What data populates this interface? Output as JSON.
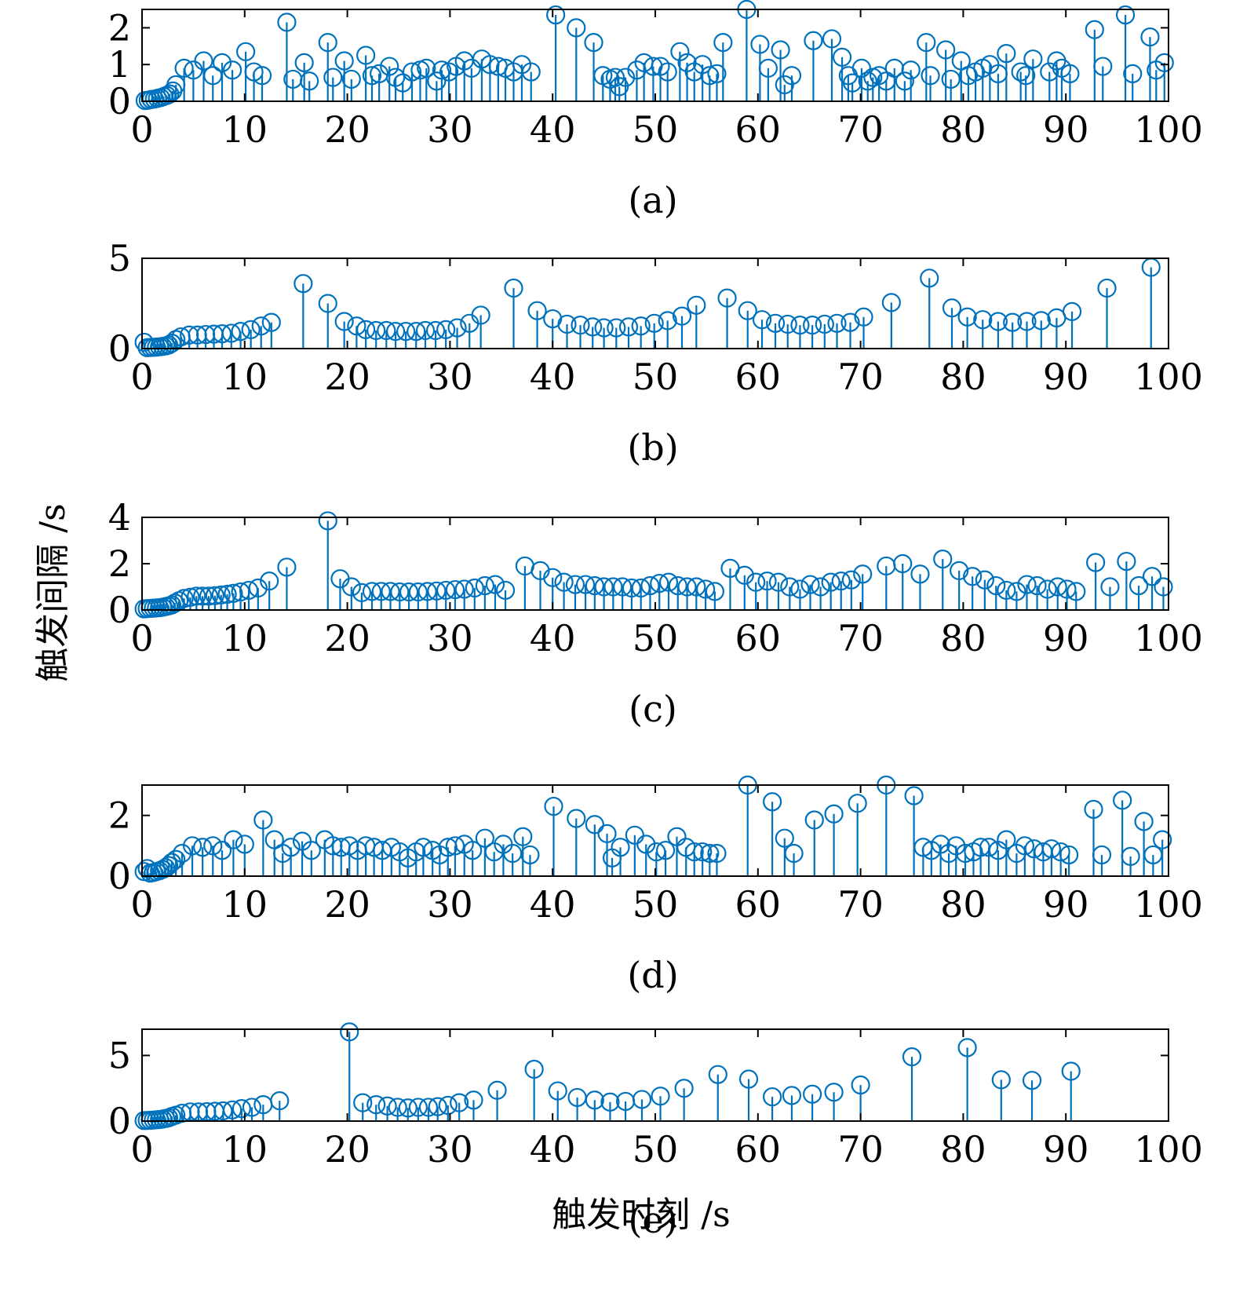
{
  "figure": {
    "ylabel": "触发间隔 /s",
    "xlabel": "触发时刻 /s",
    "stem_color": "#0072BD"
  },
  "chart_data": [
    {
      "type": "stem",
      "caption": "(a)",
      "xlim": [
        0,
        100
      ],
      "ylim": [
        0,
        2.5
      ],
      "xticks": [
        0,
        10,
        20,
        30,
        40,
        50,
        60,
        70,
        80,
        90,
        100
      ],
      "yticks": [
        0,
        1,
        2
      ],
      "x": [
        0.3,
        0.6,
        0.9,
        1.2,
        1.5,
        1.8,
        2.1,
        2.4,
        2.7,
        3.0,
        3.3,
        4.1,
        5.0,
        6.0,
        6.9,
        7.8,
        8.8,
        10.1,
        10.9,
        11.7,
        14.1,
        14.7,
        15.8,
        16.3,
        18.1,
        18.6,
        19.7,
        20.4,
        21.8,
        22.4,
        23.1,
        24.1,
        24.7,
        25.4,
        26.3,
        27.1,
        27.7,
        28.7,
        29.2,
        29.9,
        30.6,
        31.4,
        32.1,
        33.1,
        33.9,
        34.7,
        35.4,
        36.2,
        37.0,
        37.9,
        40.3,
        42.3,
        44.0,
        44.9,
        45.6,
        46.1,
        46.5,
        47.1,
        48.2,
        48.9,
        49.8,
        50.5,
        51.2,
        52.4,
        53.1,
        53.8,
        54.6,
        55.3,
        56.0,
        56.6,
        58.9,
        60.2,
        61.0,
        62.2,
        62.6,
        63.3,
        65.4,
        67.2,
        68.2,
        68.8,
        69.2,
        70.1,
        70.7,
        71.2,
        71.8,
        72.5,
        73.3,
        74.3,
        74.9,
        76.4,
        76.8,
        78.3,
        78.8,
        79.8,
        80.5,
        81.2,
        81.9,
        82.6,
        83.4,
        84.2,
        85.6,
        86.1,
        86.8,
        88.4,
        89.1,
        89.6,
        90.4,
        92.8,
        93.6,
        95.8,
        96.5,
        98.2,
        98.8,
        99.6
      ],
      "y": [
        0.02,
        0.03,
        0.05,
        0.06,
        0.08,
        0.1,
        0.13,
        0.16,
        0.2,
        0.28,
        0.45,
        0.9,
        0.85,
        1.1,
        0.7,
        1.05,
        0.85,
        1.35,
        0.8,
        0.7,
        2.15,
        0.6,
        1.05,
        0.55,
        1.6,
        0.65,
        1.1,
        0.6,
        1.25,
        0.7,
        0.75,
        0.95,
        0.65,
        0.5,
        0.8,
        0.85,
        0.9,
        0.55,
        0.85,
        0.8,
        0.95,
        1.1,
        0.9,
        1.15,
        1.0,
        0.95,
        0.9,
        0.8,
        1.0,
        0.8,
        2.35,
        2.0,
        1.6,
        0.7,
        0.6,
        0.65,
        0.4,
        0.65,
        0.85,
        1.05,
        0.95,
        0.95,
        0.8,
        1.35,
        1.05,
        0.8,
        1.0,
        0.7,
        0.75,
        1.6,
        2.5,
        1.55,
        0.9,
        1.4,
        0.45,
        0.7,
        1.65,
        1.7,
        1.2,
        0.7,
        0.5,
        0.9,
        0.55,
        0.65,
        0.7,
        0.55,
        0.9,
        0.55,
        0.85,
        1.6,
        0.7,
        1.4,
        0.6,
        1.1,
        0.7,
        0.8,
        0.9,
        1.0,
        0.75,
        1.3,
        0.8,
        0.7,
        1.15,
        0.8,
        1.1,
        0.9,
        0.75,
        1.95,
        0.95,
        2.35,
        0.75,
        1.75,
        0.85,
        1.05
      ]
    },
    {
      "type": "stem",
      "caption": "(b)",
      "xlim": [
        0,
        100
      ],
      "ylim": [
        0,
        5
      ],
      "xticks": [
        0,
        10,
        20,
        30,
        40,
        50,
        60,
        70,
        80,
        90,
        100
      ],
      "yticks": [
        0,
        5
      ],
      "x": [
        0.2,
        0.5,
        0.8,
        1.1,
        1.4,
        1.7,
        2.0,
        2.3,
        2.6,
        2.9,
        3.3,
        3.8,
        4.6,
        5.4,
        6.2,
        7.0,
        7.8,
        8.7,
        9.6,
        10.6,
        11.6,
        12.6,
        15.7,
        18.1,
        19.7,
        20.9,
        21.8,
        22.8,
        23.8,
        24.7,
        25.7,
        26.7,
        27.6,
        28.6,
        29.6,
        30.7,
        31.9,
        33.0,
        36.2,
        38.5,
        40.0,
        41.4,
        42.7,
        43.9,
        45.0,
        46.2,
        47.4,
        48.6,
        49.9,
        51.2,
        52.6,
        54.0,
        57.0,
        59.0,
        60.4,
        61.7,
        62.9,
        64.1,
        65.3,
        66.5,
        67.7,
        69.0,
        70.3,
        73.0,
        76.7,
        78.9,
        80.4,
        81.9,
        83.4,
        84.8,
        86.2,
        87.6,
        89.1,
        90.6,
        94.0,
        98.3
      ],
      "y": [
        0.35,
        0.05,
        0.06,
        0.07,
        0.08,
        0.1,
        0.12,
        0.15,
        0.2,
        0.3,
        0.5,
        0.65,
        0.75,
        0.75,
        0.78,
        0.8,
        0.82,
        0.85,
        0.95,
        1.05,
        1.25,
        1.45,
        3.6,
        2.5,
        1.5,
        1.25,
        1.05,
        1.0,
        1.0,
        0.95,
        0.95,
        0.95,
        1.0,
        1.0,
        1.05,
        1.15,
        1.4,
        1.85,
        3.35,
        2.1,
        1.65,
        1.35,
        1.3,
        1.2,
        1.15,
        1.15,
        1.2,
        1.25,
        1.4,
        1.55,
        1.8,
        2.4,
        2.8,
        2.1,
        1.6,
        1.4,
        1.35,
        1.3,
        1.3,
        1.35,
        1.4,
        1.45,
        1.75,
        2.55,
        3.9,
        2.25,
        1.75,
        1.6,
        1.5,
        1.45,
        1.5,
        1.55,
        1.7,
        2.05,
        3.35,
        4.5
      ]
    },
    {
      "type": "stem",
      "caption": "(c)",
      "xlim": [
        0,
        100
      ],
      "ylim": [
        0,
        4
      ],
      "xticks": [
        0,
        10,
        20,
        30,
        40,
        50,
        60,
        70,
        80,
        90,
        100
      ],
      "yticks": [
        0,
        2,
        4
      ],
      "x": [
        0.2,
        0.5,
        0.8,
        1.1,
        1.4,
        1.7,
        2.0,
        2.3,
        2.6,
        2.9,
        3.2,
        3.6,
        4.1,
        4.7,
        5.3,
        5.9,
        6.5,
        7.1,
        7.7,
        8.3,
        8.9,
        9.6,
        10.4,
        11.3,
        12.4,
        14.1,
        18.1,
        19.3,
        20.4,
        21.4,
        22.4,
        23.3,
        24.2,
        25.1,
        26.0,
        26.9,
        27.8,
        28.7,
        29.6,
        30.5,
        31.4,
        32.4,
        33.4,
        34.4,
        35.4,
        37.3,
        38.8,
        40.0,
        41.1,
        42.2,
        43.2,
        44.1,
        45.0,
        45.9,
        46.8,
        47.7,
        48.6,
        49.5,
        50.4,
        51.3,
        52.2,
        53.1,
        54.0,
        54.9,
        55.8,
        57.3,
        58.7,
        59.8,
        60.9,
        62.0,
        63.1,
        64.1,
        65.1,
        66.1,
        67.1,
        68.1,
        69.1,
        70.2,
        72.5,
        74.1,
        75.8,
        78.0,
        79.6,
        80.9,
        82.1,
        83.2,
        84.2,
        85.2,
        86.2,
        87.2,
        88.2,
        89.2,
        90.1,
        91.0,
        92.9,
        94.3,
        95.9,
        97.1,
        98.4,
        99.5
      ],
      "y": [
        0.05,
        0.06,
        0.07,
        0.08,
        0.09,
        0.1,
        0.12,
        0.15,
        0.18,
        0.22,
        0.3,
        0.4,
        0.5,
        0.55,
        0.6,
        0.6,
        0.6,
        0.62,
        0.65,
        0.68,
        0.72,
        0.78,
        0.85,
        0.95,
        1.25,
        1.85,
        3.85,
        1.35,
        1.0,
        0.75,
        0.8,
        0.8,
        0.8,
        0.78,
        0.78,
        0.78,
        0.8,
        0.82,
        0.85,
        0.88,
        0.9,
        0.95,
        1.05,
        1.1,
        0.85,
        1.9,
        1.7,
        1.4,
        1.2,
        1.1,
        1.1,
        1.05,
        1.0,
        1.0,
        1.0,
        0.95,
        0.95,
        1.05,
        1.15,
        1.2,
        1.05,
        1.0,
        1.0,
        0.9,
        0.8,
        1.8,
        1.5,
        1.2,
        1.25,
        1.2,
        1.0,
        0.9,
        1.1,
        1.0,
        1.2,
        1.25,
        1.3,
        1.55,
        1.9,
        2.0,
        1.55,
        2.2,
        1.7,
        1.45,
        1.3,
        1.05,
        0.85,
        0.8,
        1.1,
        1.05,
        0.9,
        1.0,
        0.9,
        0.8,
        2.05,
        1.0,
        2.1,
        1.05,
        1.45,
        1.0
      ]
    },
    {
      "type": "stem",
      "caption": "(d)",
      "xlim": [
        0,
        100
      ],
      "ylim": [
        0,
        3
      ],
      "xticks": [
        0,
        10,
        20,
        30,
        40,
        50,
        60,
        70,
        80,
        90,
        100
      ],
      "yticks": [
        0,
        2
      ],
      "x": [
        0.2,
        0.5,
        0.8,
        1.1,
        1.4,
        1.7,
        2.0,
        2.3,
        2.6,
        2.9,
        3.3,
        3.9,
        4.9,
        5.9,
        6.9,
        7.8,
        8.9,
        10.0,
        11.8,
        12.9,
        13.7,
        14.5,
        15.6,
        16.5,
        17.8,
        18.6,
        19.4,
        20.2,
        21.0,
        21.8,
        22.6,
        23.4,
        24.3,
        25.1,
        25.9,
        26.7,
        27.4,
        28.3,
        29.0,
        29.8,
        30.5,
        31.4,
        32.2,
        33.4,
        34.3,
        35.2,
        36.1,
        37.1,
        37.8,
        40.1,
        42.3,
        44.1,
        45.3,
        45.8,
        46.6,
        48.0,
        49.1,
        50.1,
        51.0,
        52.1,
        53.0,
        53.8,
        54.6,
        55.3,
        56.0,
        59.0,
        61.4,
        62.6,
        63.5,
        65.5,
        67.4,
        69.7,
        72.5,
        75.2,
        76.1,
        76.9,
        77.8,
        78.6,
        79.3,
        80.2,
        81.0,
        81.7,
        82.5,
        83.4,
        84.2,
        85.2,
        86.0,
        86.9,
        87.8,
        88.6,
        89.5,
        90.3,
        92.7,
        93.5,
        95.5,
        96.3,
        97.6,
        98.5,
        99.4
      ],
      "y": [
        0.15,
        0.25,
        0.1,
        0.12,
        0.15,
        0.18,
        0.22,
        0.28,
        0.35,
        0.45,
        0.55,
        0.75,
        1.0,
        0.95,
        1.0,
        0.85,
        1.2,
        1.05,
        1.85,
        1.2,
        0.75,
        0.95,
        1.15,
        0.85,
        1.2,
        1.0,
        0.95,
        1.0,
        0.85,
        1.0,
        0.95,
        0.85,
        0.95,
        0.8,
        0.6,
        0.8,
        0.95,
        0.85,
        0.7,
        0.95,
        1.0,
        1.05,
        0.85,
        1.25,
        0.8,
        1.05,
        0.75,
        1.3,
        0.7,
        2.3,
        1.9,
        1.7,
        1.4,
        0.6,
        0.95,
        1.35,
        1.05,
        0.8,
        0.85,
        1.3,
        0.95,
        0.8,
        0.8,
        0.75,
        0.75,
        3.0,
        2.45,
        1.25,
        0.75,
        1.85,
        2.05,
        2.4,
        3.0,
        2.65,
        0.95,
        0.85,
        1.05,
        0.75,
        1.0,
        0.75,
        0.8,
        0.95,
        0.95,
        0.85,
        1.2,
        0.75,
        1.0,
        0.9,
        0.8,
        0.9,
        0.8,
        0.7,
        2.2,
        0.7,
        2.5,
        0.65,
        1.8,
        0.7,
        1.2
      ]
    },
    {
      "type": "stem",
      "caption": "(e)",
      "xlim": [
        0,
        100
      ],
      "ylim": [
        0,
        7
      ],
      "xticks": [
        0,
        10,
        20,
        30,
        40,
        50,
        60,
        70,
        80,
        90,
        100
      ],
      "yticks": [
        0,
        5
      ],
      "x": [
        0.2,
        0.5,
        0.8,
        1.1,
        1.4,
        1.7,
        2.0,
        2.3,
        2.6,
        2.9,
        3.3,
        3.9,
        4.7,
        5.5,
        6.3,
        7.1,
        7.9,
        8.8,
        9.7,
        10.7,
        11.8,
        13.4,
        20.2,
        21.5,
        22.8,
        23.9,
        24.9,
        25.9,
        26.9,
        27.9,
        28.8,
        29.8,
        30.9,
        32.3,
        34.6,
        38.2,
        40.5,
        42.4,
        44.1,
        45.6,
        47.1,
        48.7,
        50.5,
        52.8,
        56.1,
        59.1,
        61.4,
        63.3,
        65.3,
        67.4,
        70.0,
        75.0,
        80.4,
        83.7,
        86.7,
        90.5
      ],
      "y": [
        0.04,
        0.05,
        0.06,
        0.08,
        0.1,
        0.12,
        0.15,
        0.2,
        0.25,
        0.35,
        0.45,
        0.6,
        0.7,
        0.7,
        0.72,
        0.75,
        0.78,
        0.85,
        0.95,
        1.05,
        1.25,
        1.55,
        6.8,
        1.4,
        1.25,
        1.15,
        1.05,
        1.0,
        1.05,
        1.05,
        1.1,
        1.2,
        1.4,
        1.6,
        2.35,
        3.95,
        2.3,
        1.8,
        1.6,
        1.45,
        1.5,
        1.65,
        1.9,
        2.5,
        3.55,
        3.2,
        1.85,
        1.95,
        2.05,
        2.2,
        2.75,
        4.9,
        5.6,
        3.15,
        3.1,
        3.8
      ]
    }
  ]
}
